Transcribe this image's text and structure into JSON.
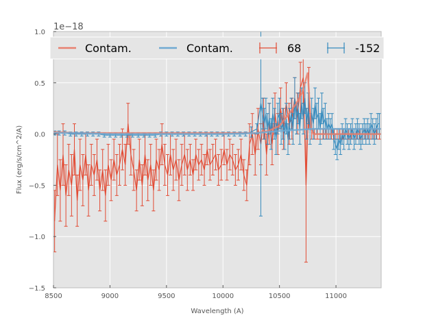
{
  "chart_data": {
    "type": "line",
    "title": "",
    "xlabel": "Wavelength (A)",
    "ylabel": "Flux (erg/s/cm^2/A)",
    "offset_label": "1e−18",
    "xlim": [
      8500,
      11400
    ],
    "ylim": [
      -1.5,
      1.0
    ],
    "xticks": [
      8500,
      9000,
      9500,
      10000,
      10500,
      11000
    ],
    "xtick_labels": [
      "8500",
      "9000",
      "9500",
      "10000",
      "10500",
      "11000"
    ],
    "yticks": [
      -1.5,
      -1.0,
      -0.5,
      0.0,
      0.5,
      1.0
    ],
    "ytick_labels": [
      "−1.5",
      "−1.0",
      "−0.5",
      "0.0",
      "0.5",
      "1.0"
    ],
    "grid": true,
    "legend_position": "top",
    "colors": {
      "red": "#e24a33",
      "blue": "#348abd",
      "red_contam": "#e8806f",
      "blue_contam": "#6fa9d2",
      "panel": "#e5e5e5",
      "grid": "#ffffff"
    },
    "legend": [
      {
        "label": "Contam.",
        "kind": "line",
        "color": "#e8806f"
      },
      {
        "label": "Contam.",
        "kind": "line",
        "color": "#6fa9d2"
      },
      {
        "label": "68",
        "kind": "errorbar",
        "color": "#e24a33"
      },
      {
        "label": "-152",
        "kind": "errorbar",
        "color": "#348abd"
      }
    ],
    "series": [
      {
        "name": "68",
        "kind": "errorbar",
        "color": "#e24a33",
        "x": [
          8510,
          8535,
          8560,
          8585,
          8610,
          8635,
          8660,
          8685,
          8710,
          8735,
          8760,
          8785,
          8810,
          8835,
          8860,
          8885,
          8910,
          8935,
          8960,
          8985,
          9010,
          9035,
          9060,
          9085,
          9110,
          9135,
          9160,
          9185,
          9210,
          9235,
          9260,
          9285,
          9310,
          9335,
          9360,
          9385,
          9410,
          9435,
          9460,
          9485,
          9510,
          9535,
          9560,
          9585,
          9610,
          9635,
          9660,
          9685,
          9710,
          9735,
          9760,
          9785,
          9810,
          9835,
          9860,
          9885,
          9910,
          9935,
          9960,
          9985,
          10010,
          10035,
          10060,
          10085,
          10110,
          10135,
          10160,
          10185,
          10210,
          10235,
          10260,
          10285,
          10310,
          10335,
          10360,
          10385,
          10410,
          10435,
          10460,
          10485,
          10510,
          10535,
          10560,
          10585,
          10610,
          10635,
          10660,
          10685,
          10710,
          10735,
          10760,
          10785,
          10810,
          10835,
          10860,
          10885,
          10910,
          10935,
          10960,
          10985,
          11010,
          11035,
          11060,
          11085,
          11110,
          11135,
          11160,
          11185,
          11210,
          11235,
          11260,
          11285,
          11310,
          11335,
          11360,
          11385
        ],
        "y": [
          -0.85,
          -0.3,
          -0.55,
          -0.2,
          -0.6,
          -0.35,
          -0.5,
          -0.15,
          -0.65,
          -0.3,
          -0.45,
          -0.2,
          -0.55,
          -0.3,
          -0.4,
          -0.25,
          -0.55,
          -0.35,
          -0.6,
          -0.3,
          -0.45,
          -0.25,
          -0.4,
          -0.3,
          -0.15,
          -0.3,
          0.1,
          -0.2,
          -0.35,
          -0.55,
          -0.25,
          -0.5,
          -0.2,
          -0.45,
          -0.3,
          -0.55,
          -0.25,
          -0.35,
          -0.1,
          -0.3,
          -0.4,
          -0.2,
          -0.35,
          -0.25,
          -0.45,
          -0.3,
          -0.2,
          -0.35,
          -0.25,
          -0.4,
          -0.2,
          -0.3,
          -0.25,
          -0.35,
          -0.15,
          -0.3,
          -0.25,
          -0.2,
          -0.35,
          -0.3,
          -0.15,
          -0.3,
          -0.2,
          -0.25,
          -0.35,
          -0.3,
          -0.2,
          -0.4,
          -0.5,
          -0.1,
          0.0,
          -0.2,
          0.05,
          -0.1,
          0.15,
          -0.2,
          0.1,
          -0.1,
          0.2,
          0.0,
          0.25,
          0.05,
          0.3,
          0.1,
          0.15,
          0.35,
          0.2,
          0.45,
          0.55,
          -0.5,
          0.35,
          0.05,
          0.0,
          0.0,
          0.0,
          0.0,
          0.0,
          0.0,
          0.0,
          0.0,
          0.0,
          0.0,
          0.0,
          0.0,
          0.0,
          0.0,
          0.0,
          0.0,
          0.0,
          0.0,
          0.0,
          0.0,
          0.0,
          0.0,
          0.0,
          0.0
        ],
        "yerr": [
          0.3,
          0.3,
          0.3,
          0.3,
          0.3,
          0.25,
          0.3,
          0.25,
          0.25,
          0.25,
          0.25,
          0.2,
          0.25,
          0.2,
          0.2,
          0.2,
          0.2,
          0.2,
          0.25,
          0.2,
          0.2,
          0.2,
          0.2,
          0.2,
          0.2,
          0.2,
          0.2,
          0.2,
          0.2,
          0.2,
          0.2,
          0.2,
          0.2,
          0.2,
          0.2,
          0.2,
          0.2,
          0.2,
          0.2,
          0.2,
          0.2,
          0.2,
          0.2,
          0.2,
          0.2,
          0.2,
          0.2,
          0.2,
          0.15,
          0.15,
          0.15,
          0.15,
          0.15,
          0.15,
          0.15,
          0.15,
          0.15,
          0.15,
          0.15,
          0.15,
          0.15,
          0.15,
          0.15,
          0.15,
          0.15,
          0.15,
          0.15,
          0.15,
          0.15,
          0.2,
          0.2,
          0.2,
          0.2,
          0.2,
          0.2,
          0.2,
          0.2,
          0.2,
          0.2,
          0.2,
          0.2,
          0.2,
          0.2,
          0.2,
          0.2,
          0.2,
          0.2,
          0.25,
          0.25,
          0.75,
          0.3,
          0.1,
          0.05,
          0.05,
          0.05,
          0.05,
          0.05,
          0.05,
          0.05,
          0.05,
          0.05,
          0.05,
          0.05,
          0.05,
          0.05,
          0.05,
          0.05,
          0.05,
          0.05,
          0.05,
          0.05,
          0.05,
          0.05,
          0.05,
          0.05,
          0.05
        ]
      },
      {
        "name": "-152",
        "kind": "errorbar",
        "color": "#348abd",
        "x": [
          8510,
          8550,
          8600,
          8650,
          8700,
          8750,
          8800,
          8850,
          8900,
          8950,
          9000,
          9050,
          9100,
          9150,
          9200,
          9250,
          9300,
          9350,
          9400,
          9450,
          9500,
          9550,
          9600,
          9650,
          9700,
          9750,
          9800,
          9850,
          9900,
          9950,
          10000,
          10050,
          10100,
          10150,
          10200,
          10250,
          10300,
          10335,
          10350,
          10365,
          10380,
          10395,
          10410,
          10425,
          10440,
          10455,
          10470,
          10485,
          10500,
          10515,
          10530,
          10545,
          10560,
          10575,
          10590,
          10605,
          10620,
          10635,
          10650,
          10665,
          10680,
          10695,
          10710,
          10725,
          10740,
          10755,
          10770,
          10785,
          10800,
          10815,
          10830,
          10845,
          10860,
          10875,
          10890,
          10905,
          10920,
          10935,
          10950,
          10965,
          10980,
          10995,
          11010,
          11025,
          11040,
          11055,
          11070,
          11085,
          11100,
          11115,
          11130,
          11145,
          11160,
          11175,
          11190,
          11205,
          11220,
          11235,
          11250,
          11265,
          11280,
          11295,
          11310,
          11325,
          11340,
          11355,
          11370,
          11385
        ],
        "y": [
          0.01,
          0.01,
          0.01,
          0.0,
          0.0,
          0.0,
          0.0,
          0.0,
          0.0,
          -0.01,
          -0.01,
          -0.01,
          -0.01,
          -0.01,
          -0.01,
          -0.01,
          -0.01,
          -0.01,
          -0.01,
          0.0,
          0.0,
          0.0,
          0.0,
          0.0,
          0.0,
          0.0,
          0.0,
          0.0,
          0.0,
          0.0,
          0.0,
          0.0,
          0.0,
          0.0,
          0.0,
          0.02,
          0.05,
          0.3,
          0.2,
          0.1,
          0.2,
          0.05,
          0.15,
          0.0,
          0.2,
          0.1,
          -0.05,
          0.15,
          0.2,
          0.05,
          0.1,
          0.0,
          0.15,
          -0.05,
          0.1,
          0.2,
          0.05,
          0.35,
          0.15,
          0.25,
          0.05,
          0.3,
          0.15,
          0.35,
          0.1,
          0.25,
          0.05,
          0.2,
          0.1,
          0.3,
          0.15,
          0.2,
          0.05,
          0.25,
          0.1,
          0.15,
          0.05,
          0.1,
          0.05,
          0.1,
          -0.05,
          -0.1,
          -0.15,
          -0.05,
          -0.1,
          0.0,
          -0.05,
          0.05,
          0.0,
          -0.05,
          0.0,
          0.05,
          -0.05,
          0.0,
          0.05,
          0.0,
          -0.05,
          0.0,
          0.05,
          0.0,
          0.05,
          0.0,
          0.1,
          0.05,
          0.0,
          0.05,
          0.1,
          0.1
        ],
        "yerr": [
          0.02,
          0.02,
          0.02,
          0.02,
          0.02,
          0.02,
          0.02,
          0.02,
          0.02,
          0.02,
          0.02,
          0.02,
          0.02,
          0.02,
          0.02,
          0.02,
          0.02,
          0.02,
          0.02,
          0.02,
          0.02,
          0.02,
          0.02,
          0.02,
          0.02,
          0.02,
          0.02,
          0.02,
          0.02,
          0.02,
          0.02,
          0.02,
          0.02,
          0.02,
          0.02,
          0.05,
          0.05,
          1.1,
          0.15,
          0.15,
          0.15,
          0.15,
          0.15,
          0.15,
          0.15,
          0.15,
          0.15,
          0.15,
          0.15,
          0.15,
          0.15,
          0.15,
          0.15,
          0.15,
          0.15,
          0.15,
          0.15,
          0.2,
          0.15,
          0.15,
          0.15,
          0.15,
          0.15,
          0.15,
          0.15,
          0.15,
          0.15,
          0.15,
          0.15,
          0.15,
          0.15,
          0.15,
          0.15,
          0.15,
          0.15,
          0.15,
          0.1,
          0.1,
          0.1,
          0.1,
          0.1,
          0.1,
          0.1,
          0.1,
          0.1,
          0.1,
          0.1,
          0.1,
          0.1,
          0.1,
          0.1,
          0.1,
          0.1,
          0.1,
          0.1,
          0.1,
          0.1,
          0.1,
          0.1,
          0.1,
          0.1,
          0.1,
          0.1,
          0.1,
          0.1,
          0.1,
          0.1,
          0.1
        ]
      },
      {
        "name": "Contam.",
        "kind": "line",
        "color": "#e8806f",
        "thick": true,
        "x": [
          8500,
          8700,
          9000,
          9500,
          10000,
          10200,
          10300,
          10400,
          10500,
          10550,
          10600,
          10650,
          10700,
          10750,
          10780,
          10800,
          11000,
          11400
        ],
        "y": [
          0.02,
          0.01,
          0.01,
          0.01,
          0.01,
          0.01,
          0.01,
          0.03,
          0.08,
          0.15,
          0.22,
          0.3,
          0.4,
          0.6,
          0.05,
          0.0,
          0.0,
          0.0
        ]
      },
      {
        "name": "Contam.",
        "kind": "line",
        "color": "#6fa9d2",
        "thick": true,
        "x": [
          8500,
          8700,
          9000,
          9500,
          10000,
          10300,
          10500,
          10800,
          11000,
          11400
        ],
        "y": [
          0.01,
          0.01,
          0.0,
          0.0,
          0.0,
          0.01,
          0.03,
          0.05,
          0.05,
          0.05
        ]
      }
    ]
  }
}
